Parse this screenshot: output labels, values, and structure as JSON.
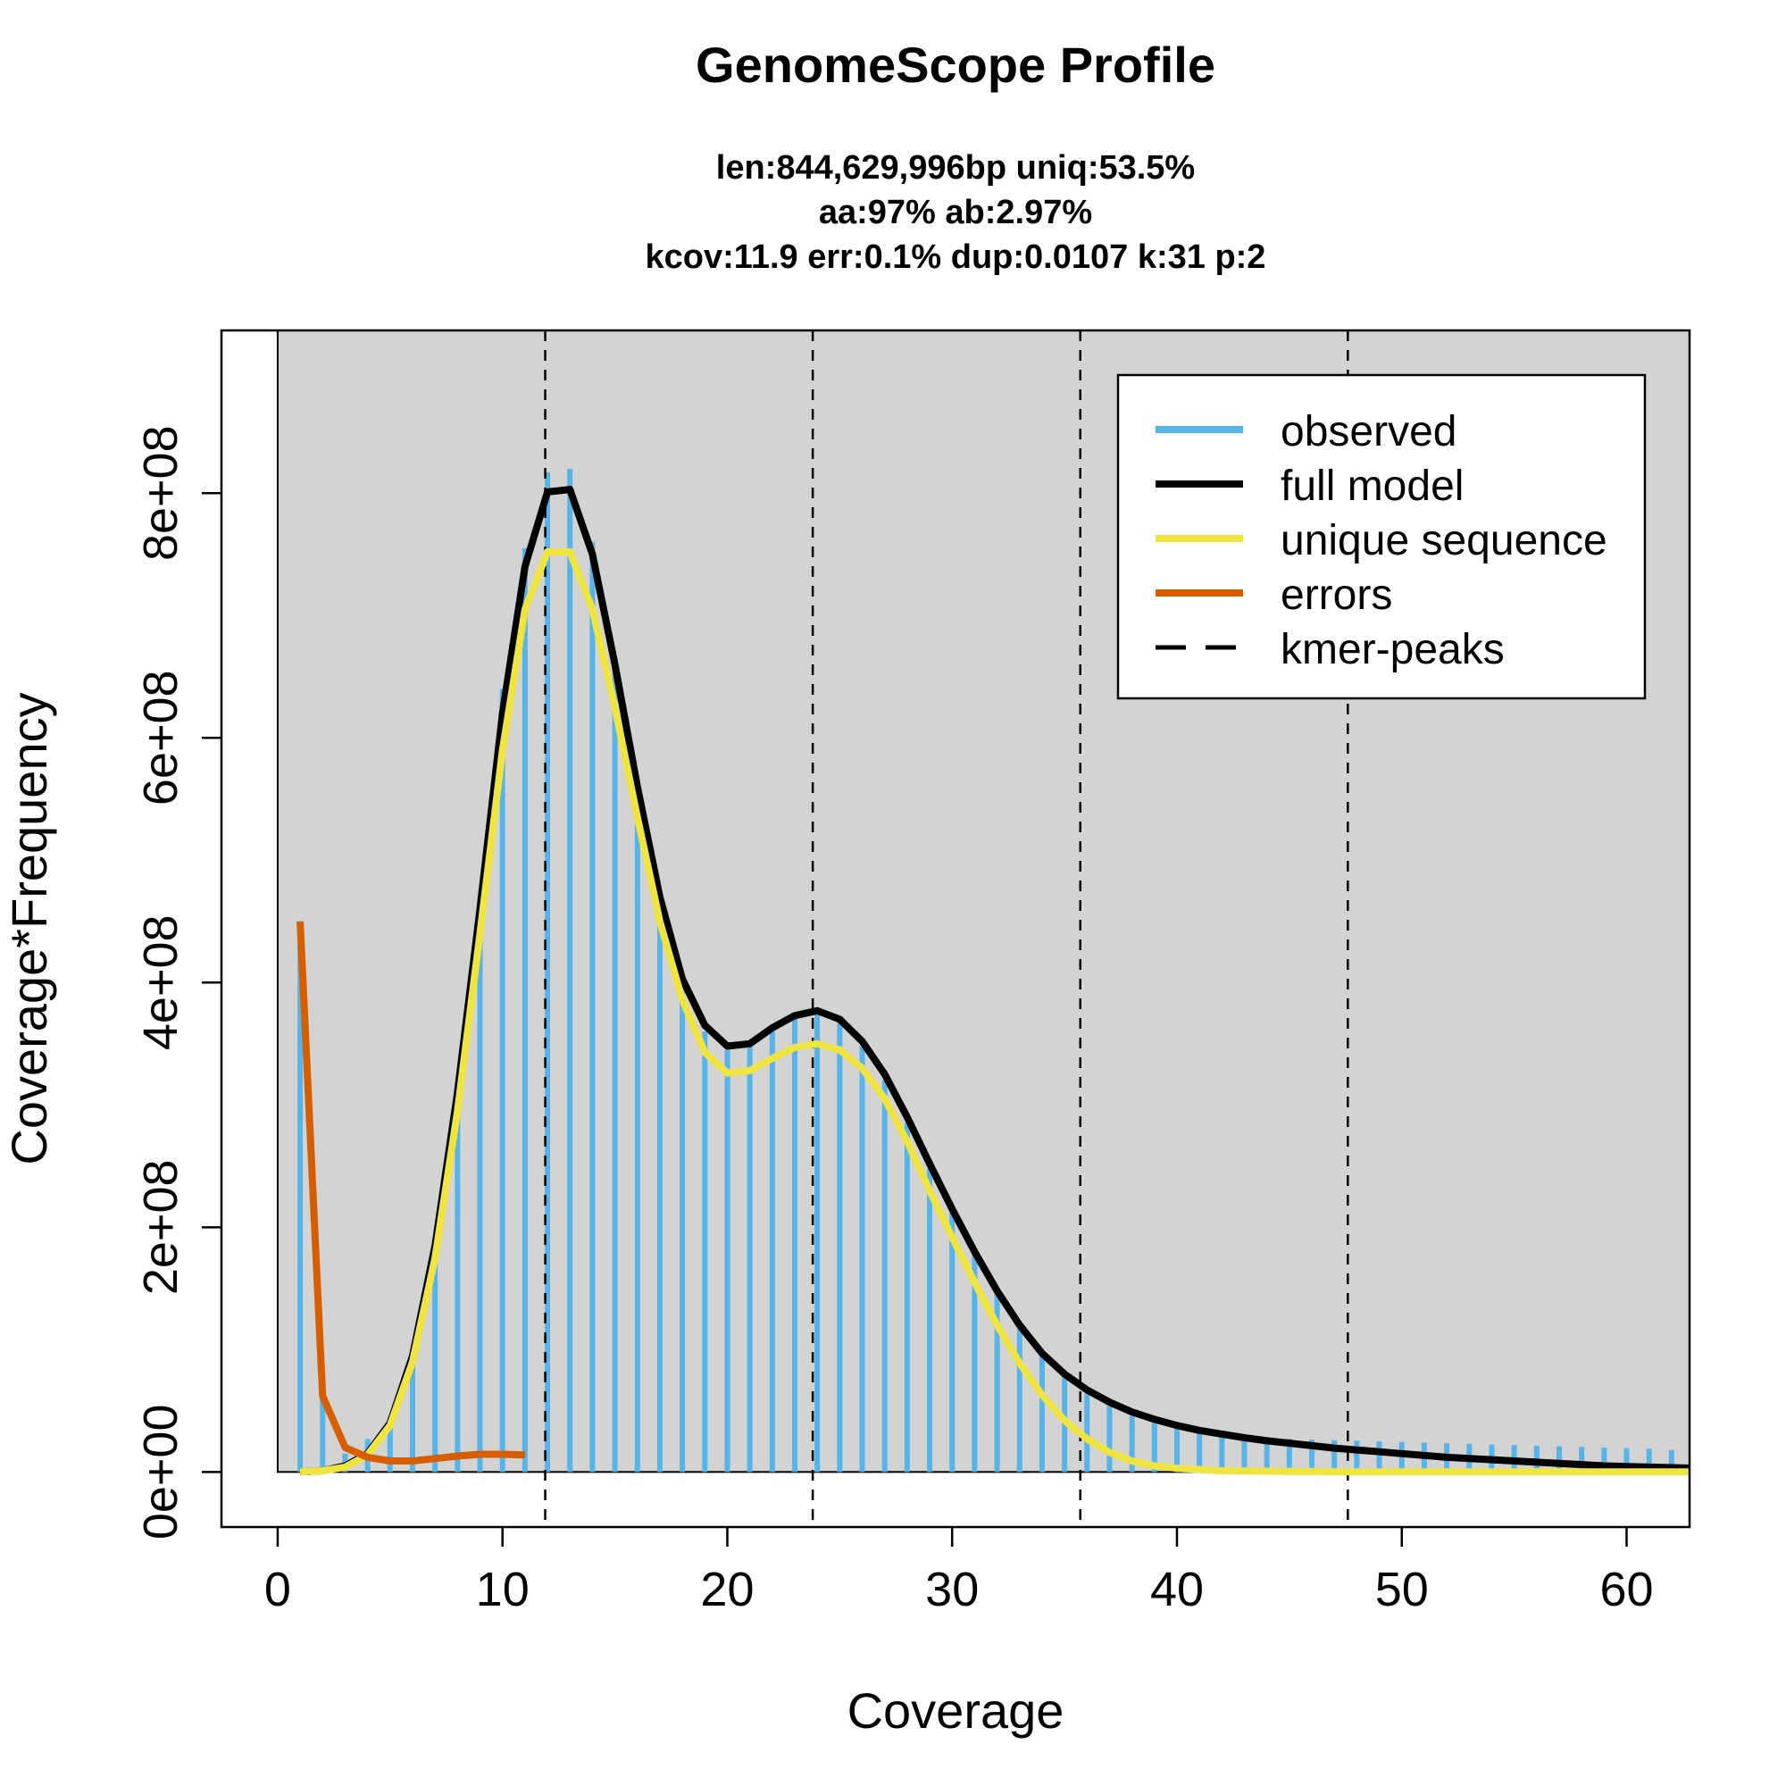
{
  "chart_data": {
    "type": "line",
    "title": "GenomeScope Profile",
    "subtitle_lines": [
      "len:844,629,996bp uniq:53.5%",
      "aa:97% ab:2.97%",
      "kcov:11.9 err:0.1%  dup:0.0107  k:31 p:2"
    ],
    "xlabel": "Coverage",
    "ylabel": "Coverage*Frequency",
    "xlim": [
      -2.5,
      62.8
    ],
    "ylim": [
      -45000000.0,
      933000000.0
    ],
    "x_ticks": [
      0,
      10,
      20,
      30,
      40,
      50,
      60
    ],
    "x_tick_labels": [
      "0",
      "10",
      "20",
      "30",
      "40",
      "50",
      "60"
    ],
    "y_ticks": [
      0,
      200000000,
      400000000,
      600000000,
      800000000
    ],
    "y_tick_labels": [
      "0e+00",
      "2e+08",
      "4e+08",
      "6e+08",
      "8e+08"
    ],
    "background_fill": "#d3d3d3",
    "kmer_peaks": [
      11.9,
      23.8,
      35.7,
      47.6
    ],
    "observed": {
      "x": [
        1,
        2,
        3,
        4,
        5,
        6,
        7,
        8,
        9,
        10,
        11,
        12,
        13,
        14,
        15,
        16,
        17,
        18,
        19,
        20,
        21,
        22,
        23,
        24,
        25,
        26,
        27,
        28,
        29,
        30,
        31,
        32,
        33,
        34,
        35,
        36,
        37,
        38,
        39,
        40,
        41,
        42,
        43,
        44,
        45,
        46,
        47,
        48,
        49,
        50,
        51,
        52,
        53,
        54,
        55,
        56,
        57,
        58,
        59,
        60,
        61,
        62
      ],
      "y": [
        450000000,
        62000000,
        15000000,
        27000000,
        45000000,
        95000000,
        175000000,
        300000000,
        470000000,
        640000000,
        755000000,
        817000000,
        820000000,
        760000000,
        665000000,
        560000000,
        470000000,
        400000000,
        360000000,
        345000000,
        348000000,
        362000000,
        372000000,
        376000000,
        368000000,
        348000000,
        320000000,
        285000000,
        248000000,
        212000000,
        180000000,
        150000000,
        122000000,
        99000000,
        80000000,
        64000000,
        54000000,
        46000000,
        40000000,
        36000000,
        33000000,
        31000000,
        30000000,
        28000000,
        27000000,
        26500000,
        26000000,
        25500000,
        25000000,
        24500000,
        24000000,
        23500000,
        23000000,
        22500000,
        22000000,
        21500000,
        21000000,
        20500000,
        20000000,
        19500000,
        19000000,
        18000000
      ]
    },
    "series": [
      {
        "name": "full model",
        "color": "#000000",
        "x": [
          1,
          2,
          3,
          4,
          5,
          6,
          7,
          8,
          9,
          10,
          11,
          12,
          13,
          14,
          15,
          16,
          17,
          18,
          19,
          20,
          21,
          22,
          23,
          24,
          25,
          26,
          27,
          28,
          29,
          30,
          31,
          32,
          33,
          34,
          35,
          36,
          37,
          38,
          39,
          40,
          41,
          42,
          43,
          44,
          45,
          46,
          47,
          48,
          49,
          50,
          51,
          52,
          53,
          54,
          55,
          56,
          57,
          58,
          59,
          60,
          61,
          62,
          63
        ],
        "y": [
          0,
          1000000,
          5000000,
          15000000,
          40000000,
          95000000,
          185000000,
          310000000,
          460000000,
          620000000,
          740000000,
          801000000,
          803000000,
          750000000,
          660000000,
          560000000,
          470000000,
          403000000,
          365000000,
          348000000,
          350000000,
          363000000,
          373000000,
          377000000,
          370000000,
          352000000,
          325000000,
          290000000,
          252000000,
          215000000,
          180000000,
          148000000,
          120000000,
          97000000,
          80000000,
          67000000,
          57000000,
          49000000,
          43000000,
          38000000,
          34000000,
          31000000,
          28000000,
          25500000,
          23500000,
          21500000,
          19500000,
          18000000,
          16500000,
          15000000,
          13500000,
          12000000,
          11000000,
          10000000,
          9000000,
          8000000,
          7000000,
          6000000,
          5000000,
          4500000,
          4000000,
          3500000,
          3000000
        ]
      },
      {
        "name": "unique sequence",
        "color": "#f0e442",
        "x": [
          1,
          2,
          3,
          4,
          5,
          6,
          7,
          8,
          9,
          10,
          11,
          12,
          13,
          14,
          15,
          16,
          17,
          18,
          19,
          20,
          21,
          22,
          23,
          24,
          25,
          26,
          27,
          28,
          29,
          30,
          31,
          32,
          33,
          34,
          35,
          36,
          37,
          38,
          39,
          40,
          41,
          42,
          43,
          44,
          45,
          46,
          47,
          48,
          49,
          50,
          51,
          52,
          53,
          54,
          55,
          56,
          57,
          58,
          59,
          60,
          61,
          62,
          63
        ],
        "y": [
          0,
          1000000,
          4000000,
          14000000,
          38000000,
          90000000,
          175000000,
          295000000,
          440000000,
          590000000,
          705000000,
          752000000,
          752000000,
          705000000,
          625000000,
          535000000,
          450000000,
          386000000,
          343000000,
          326000000,
          328000000,
          338000000,
          347000000,
          350000000,
          345000000,
          330000000,
          305000000,
          270000000,
          230000000,
          192000000,
          155000000,
          120000000,
          89000000,
          63000000,
          42000000,
          27000000,
          16000000,
          9000000,
          5000000,
          3000000,
          2000000,
          1000000,
          800000,
          600000,
          400000,
          300000,
          200000,
          100000,
          0,
          0,
          0,
          0,
          0,
          0,
          0,
          0,
          0,
          0,
          0,
          0,
          0,
          0,
          0
        ]
      },
      {
        "name": "errors",
        "color": "#d55e00",
        "x": [
          1,
          2,
          3,
          4,
          5,
          6,
          7,
          8,
          9,
          10,
          11
        ],
        "y": [
          450000000,
          62000000,
          20000000,
          12000000,
          9000000,
          9000000,
          11000000,
          13000000,
          14500000,
          14500000,
          14000000
        ]
      }
    ],
    "legend": {
      "placement": "top-right",
      "entries": [
        {
          "label": "observed",
          "color": "#56b4e9",
          "style": "solid"
        },
        {
          "label": "full model",
          "color": "#000000",
          "style": "solid"
        },
        {
          "label": "unique sequence",
          "color": "#f0e442",
          "style": "solid"
        },
        {
          "label": "errors",
          "color": "#d55e00",
          "style": "solid"
        },
        {
          "label": "kmer-peaks",
          "color": "#000000",
          "style": "dashed"
        }
      ]
    }
  }
}
